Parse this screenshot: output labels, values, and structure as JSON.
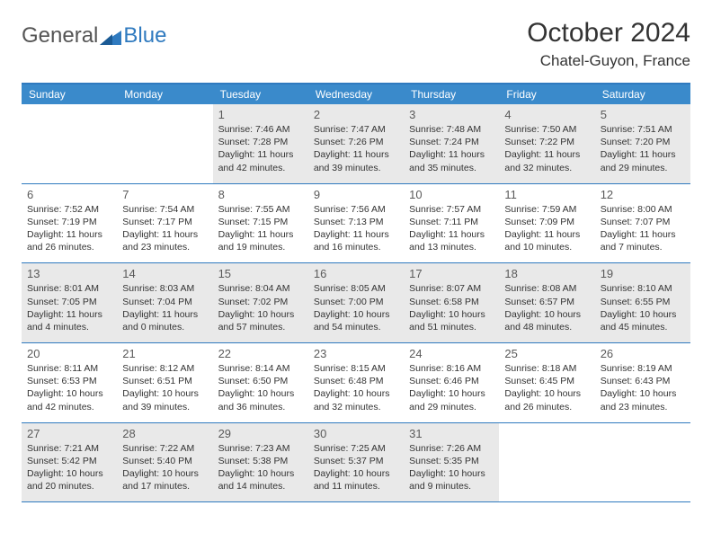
{
  "brand": {
    "word1": "General",
    "word2": "Blue"
  },
  "title": "October 2024",
  "location": "Chatel-Guyon, France",
  "colors": {
    "header_bar": "#3a8acb",
    "rule": "#2f7abf",
    "shade": "#e9e9e9",
    "text": "#333333",
    "page_bg": "#ffffff"
  },
  "weekdays": [
    "Sunday",
    "Monday",
    "Tuesday",
    "Wednesday",
    "Thursday",
    "Friday",
    "Saturday"
  ],
  "weeks": [
    [
      null,
      null,
      {
        "n": "1",
        "sr": "Sunrise: 7:46 AM",
        "ss": "Sunset: 7:28 PM",
        "dl": "Daylight: 11 hours and 42 minutes.",
        "shaded": true
      },
      {
        "n": "2",
        "sr": "Sunrise: 7:47 AM",
        "ss": "Sunset: 7:26 PM",
        "dl": "Daylight: 11 hours and 39 minutes.",
        "shaded": true
      },
      {
        "n": "3",
        "sr": "Sunrise: 7:48 AM",
        "ss": "Sunset: 7:24 PM",
        "dl": "Daylight: 11 hours and 35 minutes.",
        "shaded": true
      },
      {
        "n": "4",
        "sr": "Sunrise: 7:50 AM",
        "ss": "Sunset: 7:22 PM",
        "dl": "Daylight: 11 hours and 32 minutes.",
        "shaded": true
      },
      {
        "n": "5",
        "sr": "Sunrise: 7:51 AM",
        "ss": "Sunset: 7:20 PM",
        "dl": "Daylight: 11 hours and 29 minutes.",
        "shaded": true
      }
    ],
    [
      {
        "n": "6",
        "sr": "Sunrise: 7:52 AM",
        "ss": "Sunset: 7:19 PM",
        "dl": "Daylight: 11 hours and 26 minutes."
      },
      {
        "n": "7",
        "sr": "Sunrise: 7:54 AM",
        "ss": "Sunset: 7:17 PM",
        "dl": "Daylight: 11 hours and 23 minutes."
      },
      {
        "n": "8",
        "sr": "Sunrise: 7:55 AM",
        "ss": "Sunset: 7:15 PM",
        "dl": "Daylight: 11 hours and 19 minutes."
      },
      {
        "n": "9",
        "sr": "Sunrise: 7:56 AM",
        "ss": "Sunset: 7:13 PM",
        "dl": "Daylight: 11 hours and 16 minutes."
      },
      {
        "n": "10",
        "sr": "Sunrise: 7:57 AM",
        "ss": "Sunset: 7:11 PM",
        "dl": "Daylight: 11 hours and 13 minutes."
      },
      {
        "n": "11",
        "sr": "Sunrise: 7:59 AM",
        "ss": "Sunset: 7:09 PM",
        "dl": "Daylight: 11 hours and 10 minutes."
      },
      {
        "n": "12",
        "sr": "Sunrise: 8:00 AM",
        "ss": "Sunset: 7:07 PM",
        "dl": "Daylight: 11 hours and 7 minutes."
      }
    ],
    [
      {
        "n": "13",
        "sr": "Sunrise: 8:01 AM",
        "ss": "Sunset: 7:05 PM",
        "dl": "Daylight: 11 hours and 4 minutes.",
        "shaded": true
      },
      {
        "n": "14",
        "sr": "Sunrise: 8:03 AM",
        "ss": "Sunset: 7:04 PM",
        "dl": "Daylight: 11 hours and 0 minutes.",
        "shaded": true
      },
      {
        "n": "15",
        "sr": "Sunrise: 8:04 AM",
        "ss": "Sunset: 7:02 PM",
        "dl": "Daylight: 10 hours and 57 minutes.",
        "shaded": true
      },
      {
        "n": "16",
        "sr": "Sunrise: 8:05 AM",
        "ss": "Sunset: 7:00 PM",
        "dl": "Daylight: 10 hours and 54 minutes.",
        "shaded": true
      },
      {
        "n": "17",
        "sr": "Sunrise: 8:07 AM",
        "ss": "Sunset: 6:58 PM",
        "dl": "Daylight: 10 hours and 51 minutes.",
        "shaded": true
      },
      {
        "n": "18",
        "sr": "Sunrise: 8:08 AM",
        "ss": "Sunset: 6:57 PM",
        "dl": "Daylight: 10 hours and 48 minutes.",
        "shaded": true
      },
      {
        "n": "19",
        "sr": "Sunrise: 8:10 AM",
        "ss": "Sunset: 6:55 PM",
        "dl": "Daylight: 10 hours and 45 minutes.",
        "shaded": true
      }
    ],
    [
      {
        "n": "20",
        "sr": "Sunrise: 8:11 AM",
        "ss": "Sunset: 6:53 PM",
        "dl": "Daylight: 10 hours and 42 minutes."
      },
      {
        "n": "21",
        "sr": "Sunrise: 8:12 AM",
        "ss": "Sunset: 6:51 PM",
        "dl": "Daylight: 10 hours and 39 minutes."
      },
      {
        "n": "22",
        "sr": "Sunrise: 8:14 AM",
        "ss": "Sunset: 6:50 PM",
        "dl": "Daylight: 10 hours and 36 minutes."
      },
      {
        "n": "23",
        "sr": "Sunrise: 8:15 AM",
        "ss": "Sunset: 6:48 PM",
        "dl": "Daylight: 10 hours and 32 minutes."
      },
      {
        "n": "24",
        "sr": "Sunrise: 8:16 AM",
        "ss": "Sunset: 6:46 PM",
        "dl": "Daylight: 10 hours and 29 minutes."
      },
      {
        "n": "25",
        "sr": "Sunrise: 8:18 AM",
        "ss": "Sunset: 6:45 PM",
        "dl": "Daylight: 10 hours and 26 minutes."
      },
      {
        "n": "26",
        "sr": "Sunrise: 8:19 AM",
        "ss": "Sunset: 6:43 PM",
        "dl": "Daylight: 10 hours and 23 minutes."
      }
    ],
    [
      {
        "n": "27",
        "sr": "Sunrise: 7:21 AM",
        "ss": "Sunset: 5:42 PM",
        "dl": "Daylight: 10 hours and 20 minutes.",
        "shaded": true
      },
      {
        "n": "28",
        "sr": "Sunrise: 7:22 AM",
        "ss": "Sunset: 5:40 PM",
        "dl": "Daylight: 10 hours and 17 minutes.",
        "shaded": true
      },
      {
        "n": "29",
        "sr": "Sunrise: 7:23 AM",
        "ss": "Sunset: 5:38 PM",
        "dl": "Daylight: 10 hours and 14 minutes.",
        "shaded": true
      },
      {
        "n": "30",
        "sr": "Sunrise: 7:25 AM",
        "ss": "Sunset: 5:37 PM",
        "dl": "Daylight: 10 hours and 11 minutes.",
        "shaded": true
      },
      {
        "n": "31",
        "sr": "Sunrise: 7:26 AM",
        "ss": "Sunset: 5:35 PM",
        "dl": "Daylight: 10 hours and 9 minutes.",
        "shaded": true
      },
      null,
      null
    ]
  ]
}
